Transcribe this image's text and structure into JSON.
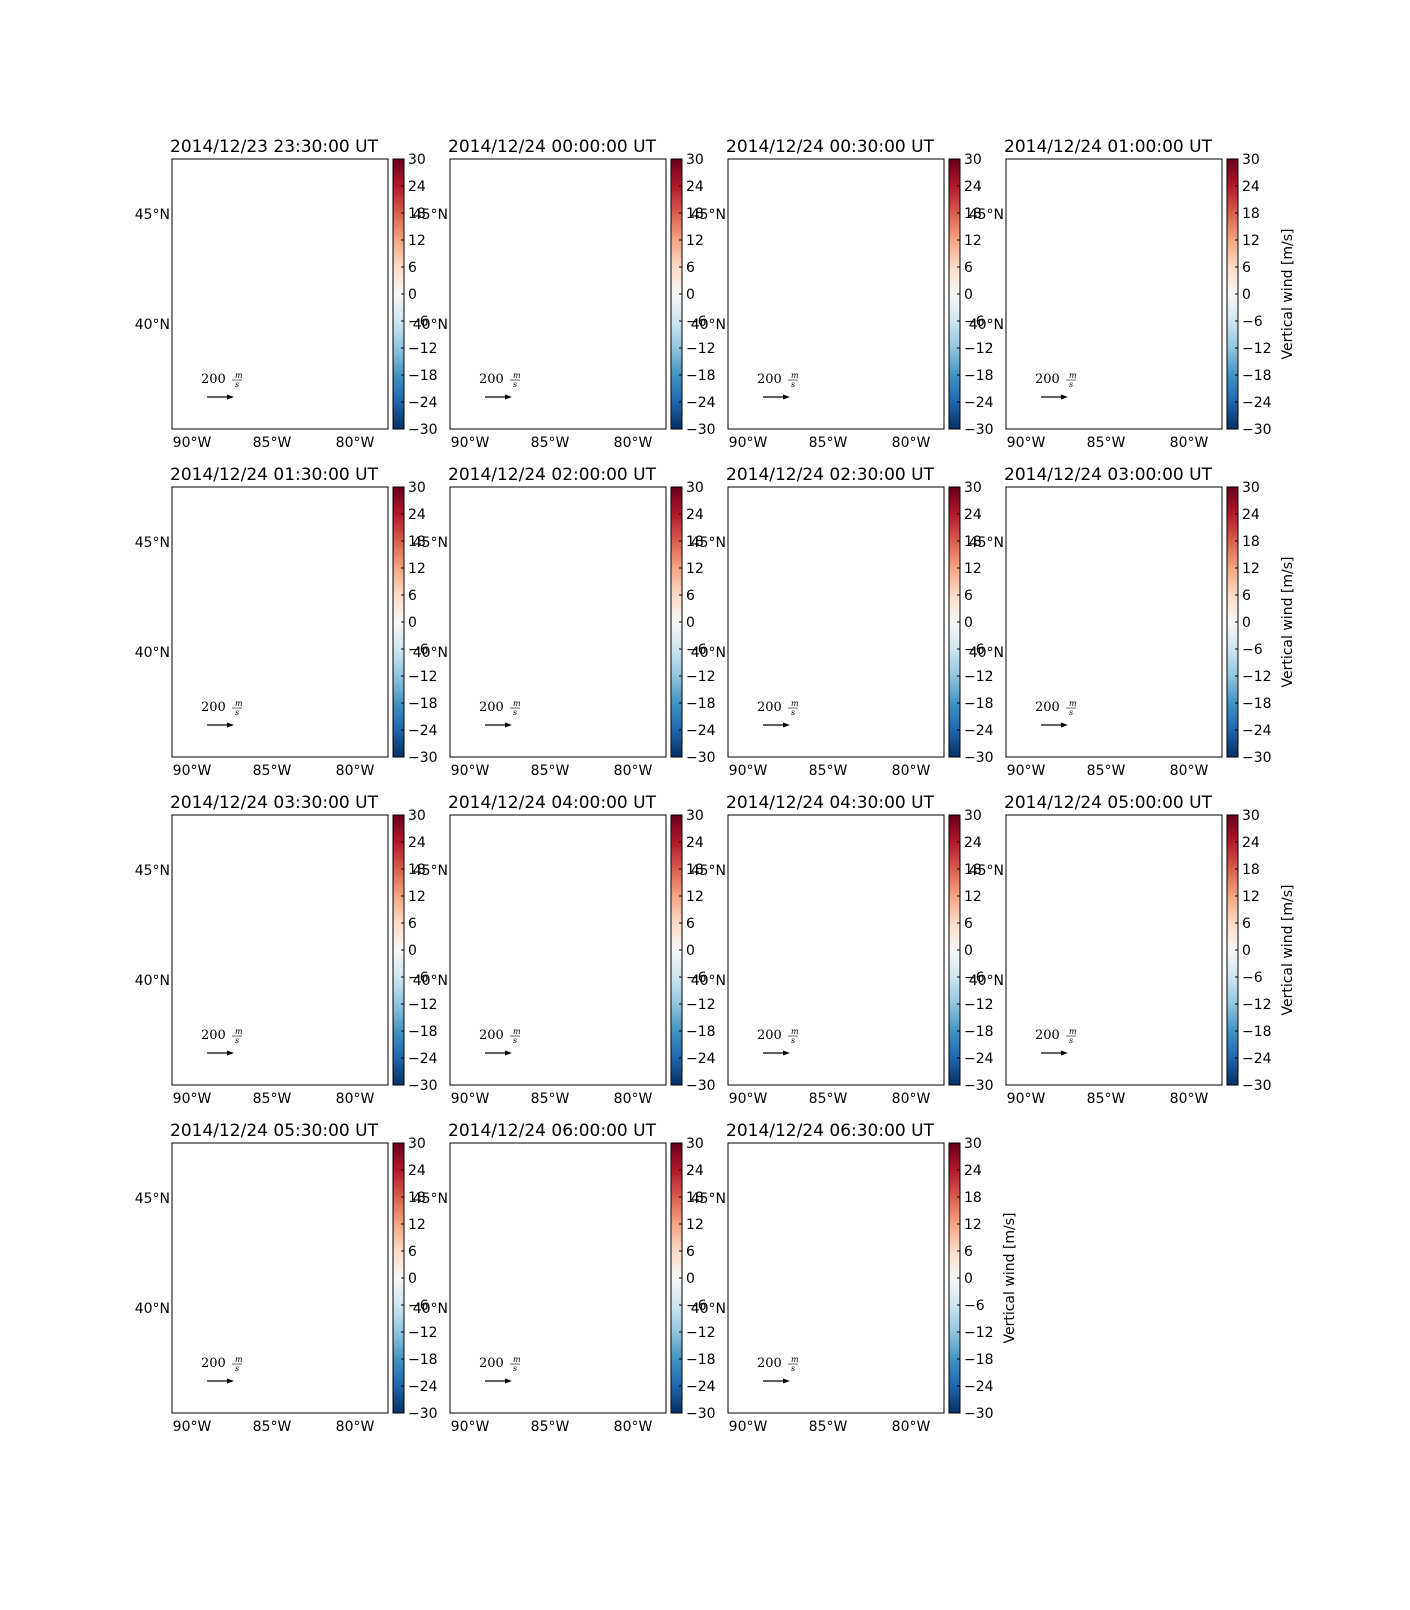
{
  "figure": {
    "panels": [
      {
        "title": "2014/12/23 23:30:00 UT",
        "show_cb_label": false
      },
      {
        "title": "2014/12/24 00:00:00 UT",
        "show_cb_label": false
      },
      {
        "title": "2014/12/24 00:30:00 UT",
        "show_cb_label": false
      },
      {
        "title": "2014/12/24 01:00:00 UT",
        "show_cb_label": true
      },
      {
        "title": "2014/12/24 01:30:00 UT",
        "show_cb_label": false
      },
      {
        "title": "2014/12/24 02:00:00 UT",
        "show_cb_label": false
      },
      {
        "title": "2014/12/24 02:30:00 UT",
        "show_cb_label": false
      },
      {
        "title": "2014/12/24 03:00:00 UT",
        "show_cb_label": true
      },
      {
        "title": "2014/12/24 03:30:00 UT",
        "show_cb_label": false
      },
      {
        "title": "2014/12/24 04:00:00 UT",
        "show_cb_label": false
      },
      {
        "title": "2014/12/24 04:30:00 UT",
        "show_cb_label": false
      },
      {
        "title": "2014/12/24 05:00:00 UT",
        "show_cb_label": true
      },
      {
        "title": "2014/12/24 05:30:00 UT",
        "show_cb_label": false
      },
      {
        "title": "2014/12/24 06:00:00 UT",
        "show_cb_label": false
      },
      {
        "title": "2014/12/24 06:30:00 UT",
        "show_cb_label": true
      }
    ],
    "lon_ticks": [
      "90°W",
      "85°W",
      "80°W"
    ],
    "lat_ticks": [
      "45°N",
      "40°N"
    ],
    "colorbar": {
      "ticks": [
        "30",
        "24",
        "18",
        "12",
        "6",
        "0",
        "−6",
        "−12",
        "−18",
        "−24",
        "−30"
      ],
      "label": "Vertical wind [m/s]",
      "cmap": [
        "#67001f",
        "#b2182b",
        "#d6604d",
        "#f4a582",
        "#fddbc7",
        "#f7f7f7",
        "#d1e5f0",
        "#92c5de",
        "#4393c3",
        "#2166ac",
        "#053061"
      ]
    },
    "scale_arrow": {
      "value": "200",
      "unit_num": "m",
      "unit_den": "s"
    }
  }
}
